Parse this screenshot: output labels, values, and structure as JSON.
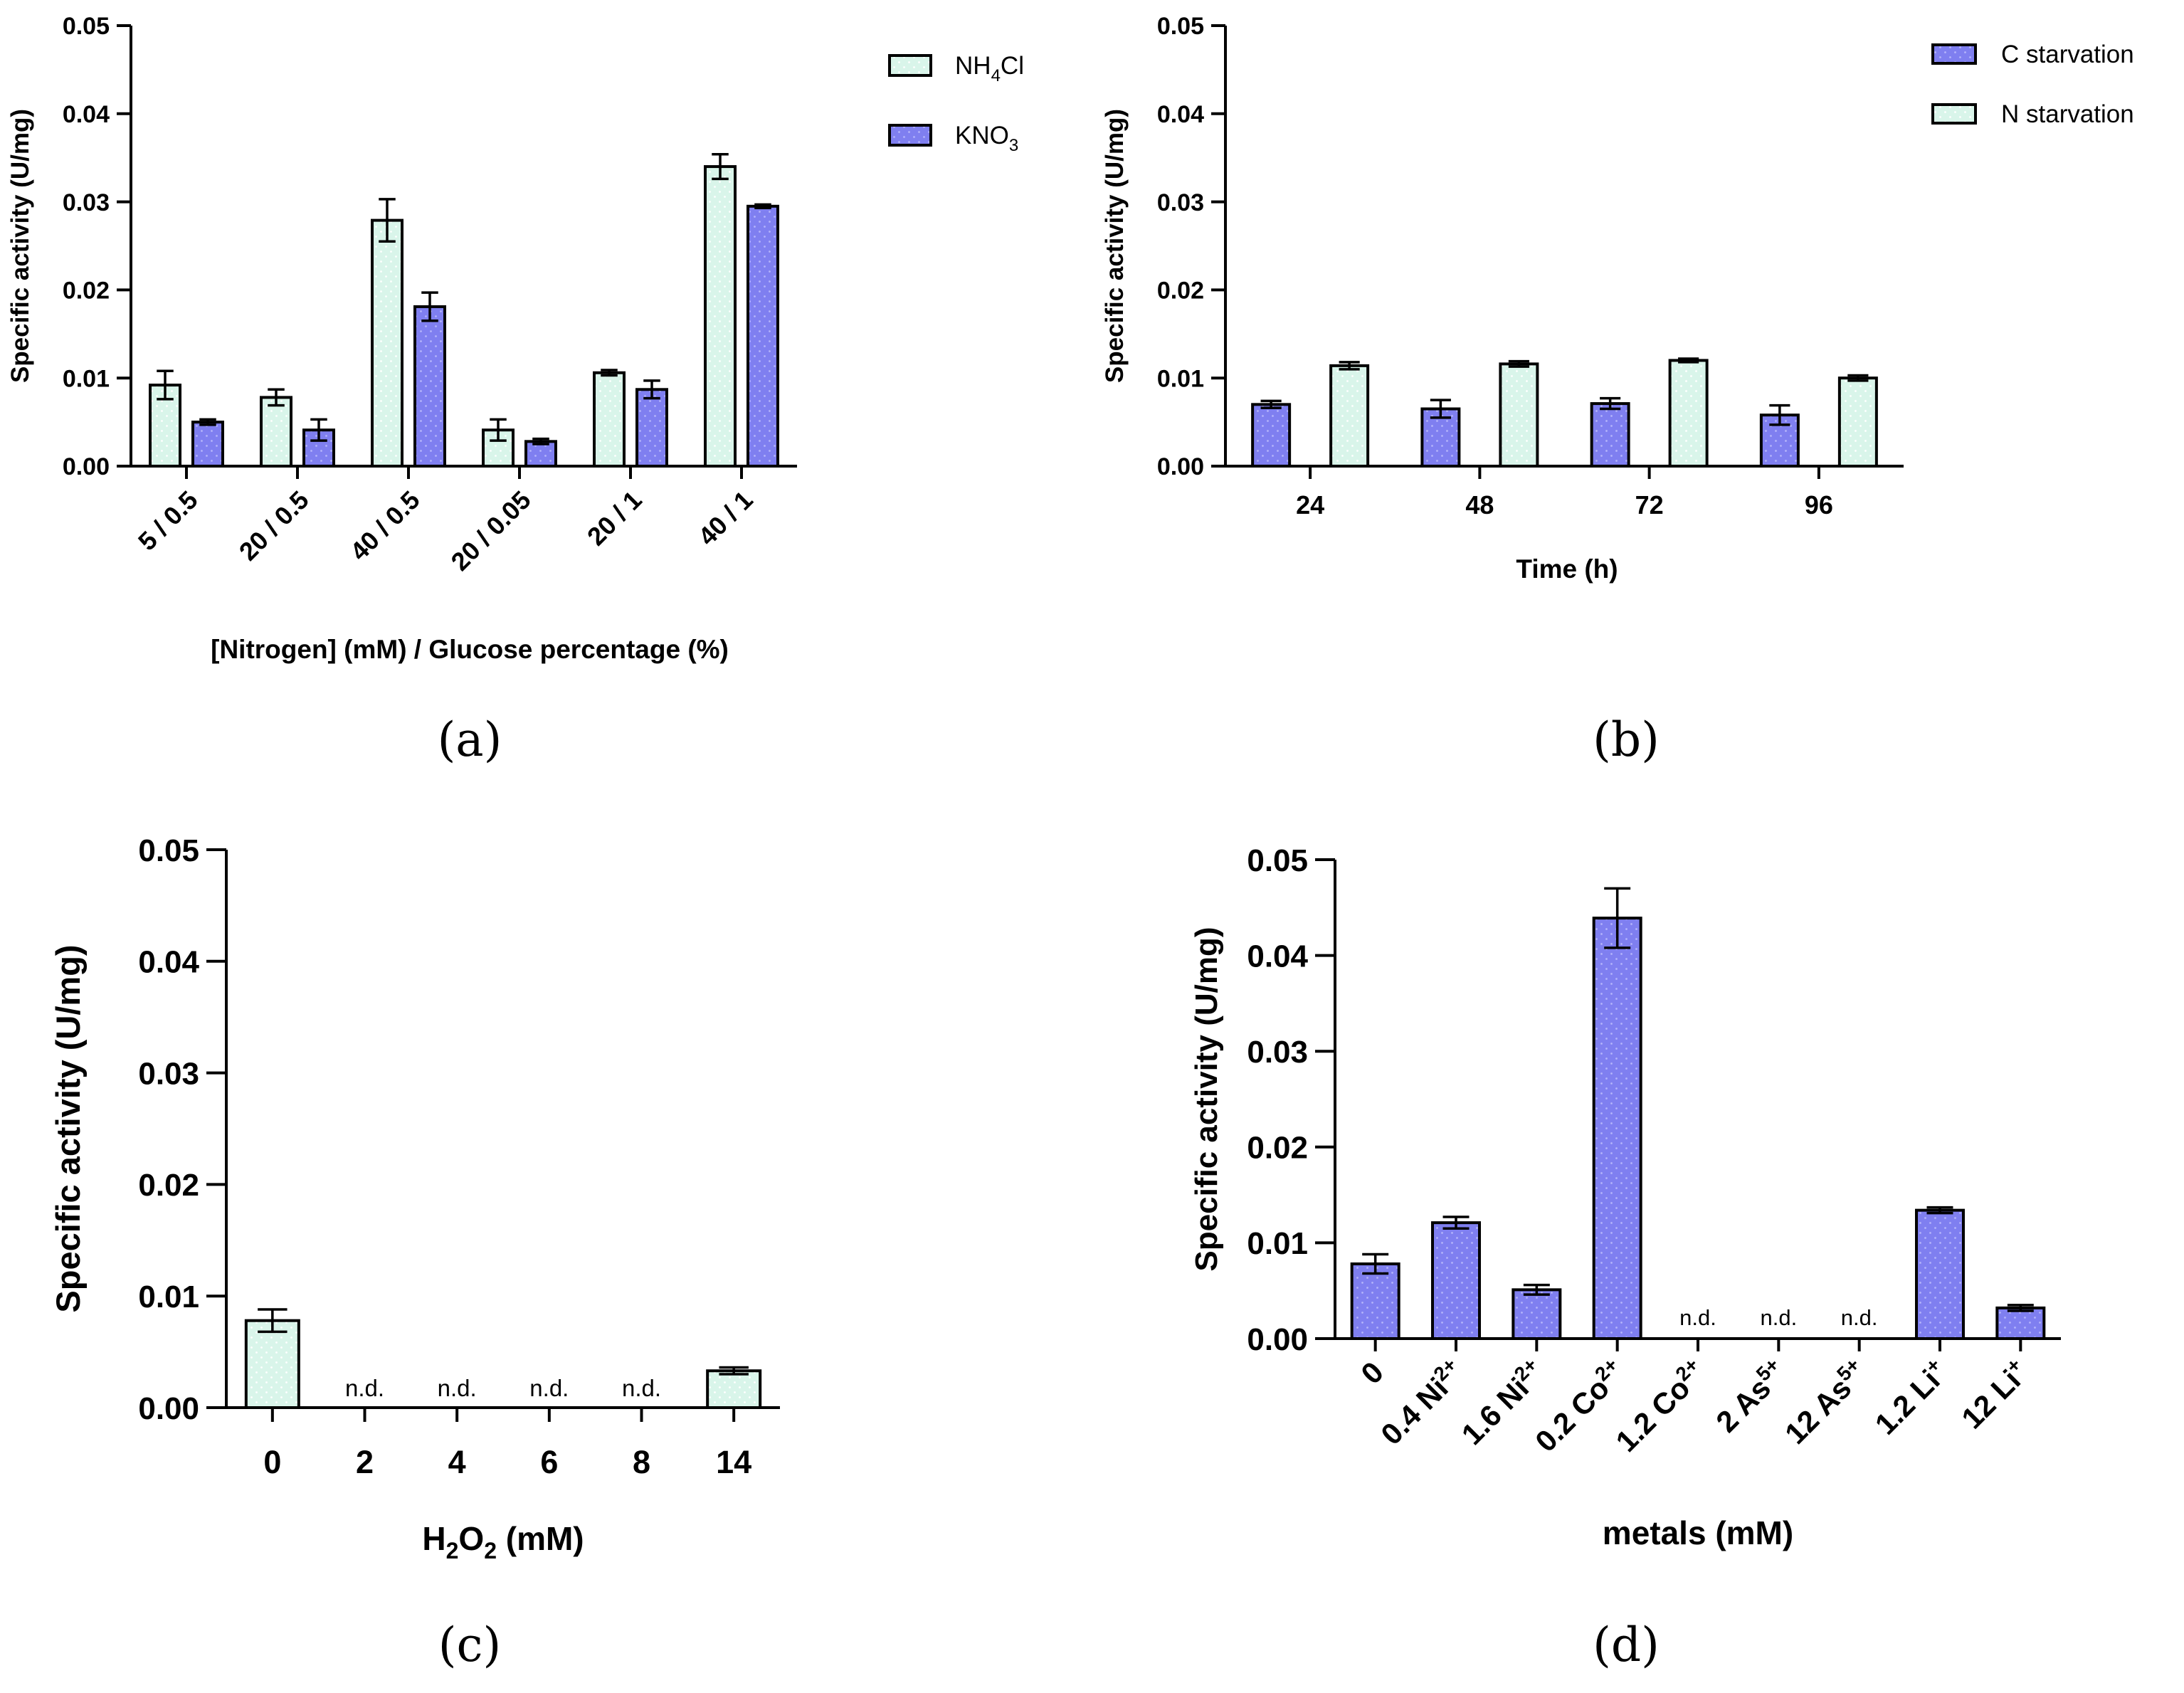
{
  "chart_data": [
    {
      "panel": "(a)",
      "type": "bar",
      "xlabel": "[Nitrogen] (mM) / Glucose percentage (%)",
      "ylabel": "Specific activity (U/mg)",
      "ylim": [
        0,
        0.05
      ],
      "yticks": [
        "0.00",
        "0.01",
        "0.02",
        "0.03",
        "0.04",
        "0.05"
      ],
      "categories": [
        "5 / 0.5",
        "20 / 0.5",
        "40 / 0.5",
        "20 / 0.05",
        "20 / 1",
        "40 / 1"
      ],
      "series": [
        {
          "name": "NH4Cl",
          "legend": {
            "base": "NH",
            "sub": "4",
            "tail": "Cl"
          },
          "color": "#d9f5ea",
          "values": [
            0.0092,
            0.0078,
            0.0279,
            0.0041,
            0.0106,
            0.034
          ],
          "errors": [
            0.0016,
            0.0009,
            0.0024,
            0.0012,
            0.0003,
            0.0014
          ]
        },
        {
          "name": "KNO3",
          "legend": {
            "base": "KNO",
            "sub": "3",
            "tail": ""
          },
          "color": "#7f7ff0",
          "values": [
            0.005,
            0.0041,
            0.0181,
            0.0028,
            0.0087,
            0.0295
          ],
          "errors": [
            0.0003,
            0.0012,
            0.0016,
            0.0003,
            0.001,
            0.0002
          ]
        }
      ]
    },
    {
      "panel": "(b)",
      "type": "bar",
      "xlabel": "Time (h)",
      "ylabel": "Specific activity (U/mg)",
      "ylim": [
        0,
        0.05
      ],
      "yticks": [
        "0.00",
        "0.01",
        "0.02",
        "0.03",
        "0.04",
        "0.05"
      ],
      "categories": [
        "24",
        "48",
        "72",
        "96"
      ],
      "series": [
        {
          "name": "C starvation",
          "color": "#7f7ff0",
          "values": [
            0.007,
            0.0065,
            0.0071,
            0.0058
          ],
          "errors": [
            0.0004,
            0.001,
            0.0006,
            0.0011
          ]
        },
        {
          "name": "N starvation",
          "color": "#d9f5ea",
          "values": [
            0.0114,
            0.0116,
            0.012,
            0.01
          ],
          "errors": [
            0.0004,
            0.0003,
            0.0002,
            0.0003
          ]
        }
      ]
    },
    {
      "panel": "(c)",
      "type": "bar",
      "xlabel": {
        "pre": "H",
        "sub1": "2",
        "mid": "O",
        "sub2": "2",
        "post": " (mM)"
      },
      "ylabel": "Specific activity (U/mg)",
      "ylim": [
        0,
        0.05
      ],
      "yticks": [
        "0.00",
        "0.01",
        "0.02",
        "0.03",
        "0.04",
        "0.05"
      ],
      "categories": [
        "0",
        "2",
        "4",
        "6",
        "8",
        "14"
      ],
      "values": [
        0.0078,
        null,
        null,
        null,
        null,
        0.0033
      ],
      "errors": [
        0.001,
        null,
        null,
        null,
        null,
        0.0003
      ],
      "nd_label": "n.d.",
      "color": "#d9f5ea"
    },
    {
      "panel": "(d)",
      "type": "bar",
      "xlabel": "metals (mM)",
      "ylabel": "Specific activity (U/mg)",
      "ylim": [
        0,
        0.05
      ],
      "yticks": [
        "0.00",
        "0.01",
        "0.02",
        "0.03",
        "0.04",
        "0.05"
      ],
      "categories": [
        {
          "base": "0",
          "sup": ""
        },
        {
          "base": "0.4 Ni",
          "sup": "2+"
        },
        {
          "base": "1.6 Ni",
          "sup": "2+"
        },
        {
          "base": "0.2 Co",
          "sup": "2+"
        },
        {
          "base": "1.2 Co",
          "sup": "2+"
        },
        {
          "base": "2 As",
          "sup": "5+"
        },
        {
          "base": "12 As",
          "sup": "5+"
        },
        {
          "base": "1.2 Li",
          "sup": "+"
        },
        {
          "base": "12 Li",
          "sup": "+"
        }
      ],
      "values": [
        0.0078,
        0.0121,
        0.0051,
        0.0439,
        null,
        null,
        null,
        0.0134,
        0.0032
      ],
      "errors": [
        0.001,
        0.0006,
        0.0005,
        0.0031,
        null,
        null,
        null,
        0.0003,
        0.0003
      ],
      "nd_label": "n.d.",
      "color": "#7f7ff0"
    }
  ]
}
